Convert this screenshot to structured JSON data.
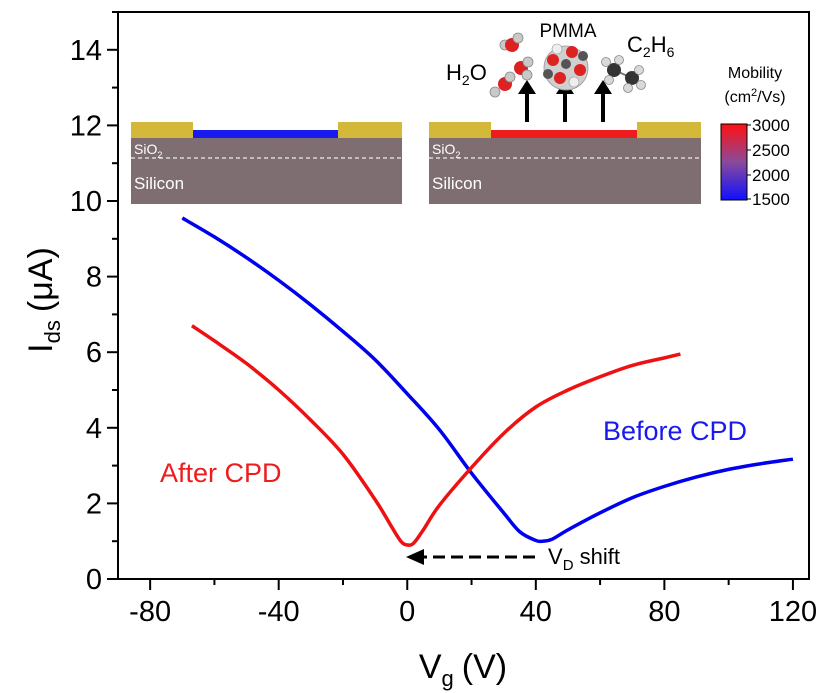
{
  "chart_data": {
    "type": "line",
    "xlabel": "V",
    "xlabel_sub": "g",
    "xlabel_unit": "(V)",
    "ylabel": "I",
    "ylabel_sub": "ds",
    "ylabel_unit": "(μA)",
    "xlim": [
      -90,
      125
    ],
    "ylim": [
      0,
      15
    ],
    "xticks": [
      -80,
      -40,
      0,
      40,
      80,
      120
    ],
    "xtick_labels": [
      "-80",
      "-40",
      "0",
      "40",
      "80",
      "120"
    ],
    "yticks": [
      0,
      2,
      4,
      6,
      8,
      10,
      12,
      14
    ],
    "ytick_labels": [
      "0",
      "2",
      "4",
      "6",
      "8",
      "10",
      "12",
      "14"
    ],
    "series": [
      {
        "name": "Before CPD",
        "color": "#0000ee",
        "x": [
          -70,
          -60,
          -50,
          -40,
          -30,
          -20,
          -10,
          0,
          10,
          20,
          30,
          35,
          40,
          42,
          45,
          50,
          60,
          70,
          80,
          90,
          100,
          110,
          120
        ],
        "y": [
          9.55,
          9.05,
          8.5,
          7.9,
          7.25,
          6.55,
          5.8,
          4.9,
          3.95,
          2.8,
          1.75,
          1.25,
          1.02,
          1.0,
          1.05,
          1.3,
          1.75,
          2.15,
          2.45,
          2.7,
          2.9,
          3.05,
          3.17
        ]
      },
      {
        "name": "After CPD",
        "color": "#ee1111",
        "x": [
          -67,
          -60,
          -50,
          -40,
          -30,
          -20,
          -10,
          -5,
          -2,
          0,
          2,
          5,
          10,
          20,
          30,
          40,
          50,
          60,
          70,
          80,
          85
        ],
        "y": [
          6.7,
          6.3,
          5.7,
          5.0,
          4.2,
          3.3,
          2.1,
          1.4,
          1.0,
          0.9,
          0.95,
          1.3,
          1.95,
          2.95,
          3.85,
          4.55,
          5.0,
          5.35,
          5.65,
          5.85,
          5.95
        ]
      }
    ],
    "annotations": {
      "before_label": "Before CPD",
      "after_label": "After CPD",
      "vd_shift": "V",
      "vd_shift_sub": "D",
      "vd_shift_rest": " shift"
    }
  },
  "inset": {
    "sio2": "SiO",
    "sio2_sub": "2",
    "silicon": "Silicon",
    "h2o_h": "H",
    "h2o_sub": "2",
    "h2o_o": "O",
    "pmma": "PMMA",
    "c2h6_c": "C",
    "c2h6_sub1": "2",
    "c2h6_h": "H",
    "c2h6_sub2": "6",
    "colorbar_title_1": "Mobility",
    "colorbar_title_2a": "(cm",
    "colorbar_title_sup": "2",
    "colorbar_title_2b": "/Vs)",
    "colorbar_ticks": [
      "3000",
      "2500",
      "2000",
      "1500"
    ],
    "colors": {
      "gold": "#d4b83a",
      "substrate": "#7e6e72",
      "channel_before": "#1a1aee",
      "channel_after": "#ee1c1c"
    }
  }
}
